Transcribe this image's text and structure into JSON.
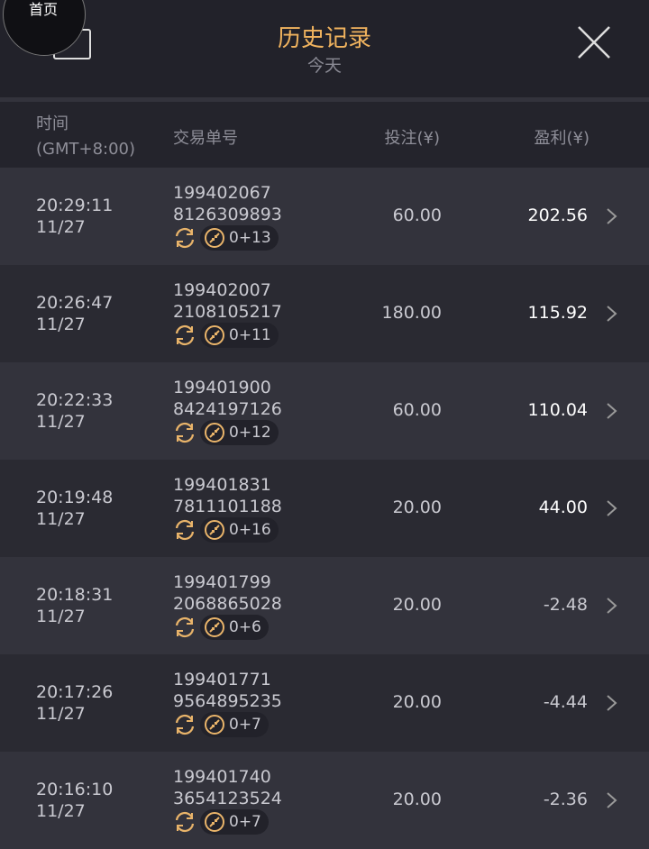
{
  "header": {
    "title": "历史记录",
    "subtitle": "今天",
    "home_label": "首页"
  },
  "columns": {
    "time": "时间",
    "time_tz": "(GMT+8:00)",
    "order": "交易单号",
    "bet": "投注(¥)",
    "profit": "盈利(¥)"
  },
  "colors": {
    "accent": "#f0b35e"
  },
  "rows": [
    {
      "time": "20:29:11",
      "date": "11/27",
      "id1": "199402067",
      "id2": "8126309893",
      "badge": "0+13",
      "bet": "60.00",
      "profit": "202.56"
    },
    {
      "time": "20:26:47",
      "date": "11/27",
      "id1": "199402007",
      "id2": "2108105217",
      "badge": "0+11",
      "bet": "180.00",
      "profit": "115.92"
    },
    {
      "time": "20:22:33",
      "date": "11/27",
      "id1": "199401900",
      "id2": "8424197126",
      "badge": "0+12",
      "bet": "60.00",
      "profit": "110.04"
    },
    {
      "time": "20:19:48",
      "date": "11/27",
      "id1": "199401831",
      "id2": "7811101188",
      "badge": "0+16",
      "bet": "20.00",
      "profit": "44.00"
    },
    {
      "time": "20:18:31",
      "date": "11/27",
      "id1": "199401799",
      "id2": "2068865028",
      "badge": "0+6",
      "bet": "20.00",
      "profit": "-2.48"
    },
    {
      "time": "20:17:26",
      "date": "11/27",
      "id1": "199401771",
      "id2": "9564895235",
      "badge": "0+7",
      "bet": "20.00",
      "profit": "-4.44"
    },
    {
      "time": "20:16:10",
      "date": "11/27",
      "id1": "199401740",
      "id2": "3654123524",
      "badge": "0+7",
      "bet": "20.00",
      "profit": "-2.36"
    }
  ]
}
